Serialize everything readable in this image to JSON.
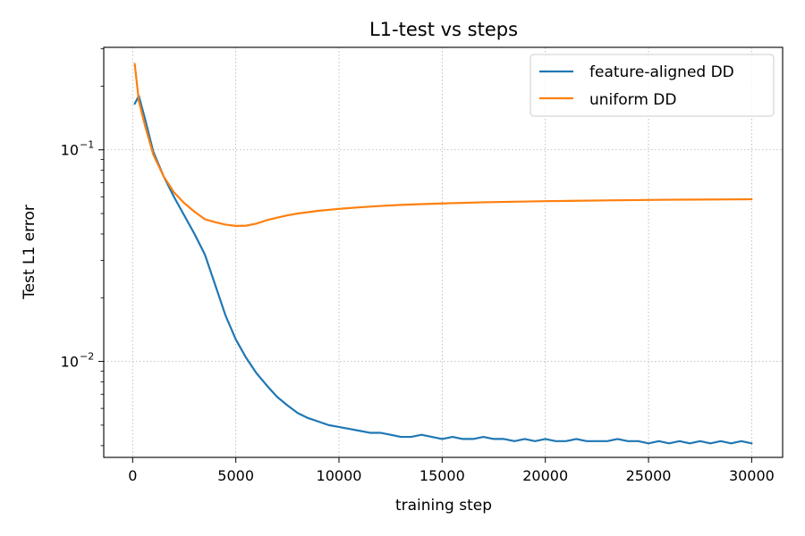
{
  "chart_data": {
    "type": "line",
    "title": "L1-test vs steps",
    "xlabel": "training step",
    "ylabel": "Test L1 error",
    "xscale": "linear",
    "yscale": "log",
    "xlim": [
      -1400,
      31500
    ],
    "ylim": [
      0.00352,
      0.305
    ],
    "xticks": [
      0,
      5000,
      10000,
      15000,
      20000,
      25000,
      30000
    ],
    "xtick_labels": [
      "0",
      "5000",
      "10000",
      "15000",
      "20000",
      "25000",
      "30000"
    ],
    "yticks": [
      0.01,
      0.1
    ],
    "ytick_labels": [
      {
        "base": "10",
        "exp": "−2"
      },
      {
        "base": "10",
        "exp": "−1"
      }
    ],
    "grid": true,
    "legend_position": "top-right",
    "series": [
      {
        "name": "feature-aligned DD",
        "color": "#1f77b4",
        "x": [
          100,
          300,
          600,
          1000,
          1500,
          2000,
          2500,
          3000,
          3500,
          4000,
          4500,
          5000,
          5500,
          6000,
          6500,
          7000,
          7500,
          8000,
          8500,
          9000,
          9500,
          10000,
          10500,
          11000,
          11500,
          12000,
          12500,
          13000,
          13500,
          14000,
          14500,
          15000,
          15500,
          16000,
          16500,
          17000,
          17500,
          18000,
          18500,
          19000,
          19500,
          20000,
          20500,
          21000,
          21500,
          22000,
          22500,
          23000,
          23500,
          24000,
          24500,
          25000,
          25500,
          26000,
          26500,
          27000,
          27500,
          28000,
          28500,
          29000,
          29500,
          30000
        ],
        "y": [
          0.165,
          0.18,
          0.14,
          0.098,
          0.075,
          0.06,
          0.049,
          0.04,
          0.032,
          0.023,
          0.0165,
          0.0127,
          0.0104,
          0.0088,
          0.0077,
          0.0068,
          0.0062,
          0.0057,
          0.0054,
          0.0052,
          0.005,
          0.0049,
          0.0048,
          0.0047,
          0.0046,
          0.0046,
          0.0045,
          0.0044,
          0.0044,
          0.0045,
          0.0044,
          0.0043,
          0.0044,
          0.0043,
          0.0043,
          0.0044,
          0.0043,
          0.0043,
          0.0042,
          0.0043,
          0.0042,
          0.0043,
          0.0042,
          0.0042,
          0.0043,
          0.0042,
          0.0042,
          0.0042,
          0.0043,
          0.0042,
          0.0042,
          0.0041,
          0.0042,
          0.0041,
          0.0042,
          0.0041,
          0.0042,
          0.0041,
          0.0042,
          0.0041,
          0.0042,
          0.0041
        ]
      },
      {
        "name": "uniform DD",
        "color": "#ff7f0e",
        "x": [
          100,
          300,
          600,
          1000,
          1500,
          2000,
          2500,
          3000,
          3500,
          4000,
          4500,
          5000,
          5500,
          6000,
          6500,
          7000,
          7500,
          8000,
          9000,
          10000,
          11000,
          12000,
          13000,
          14000,
          15000,
          17000,
          20000,
          23000,
          26000,
          30000
        ],
        "y": [
          0.255,
          0.17,
          0.13,
          0.095,
          0.075,
          0.063,
          0.056,
          0.051,
          0.047,
          0.0455,
          0.0443,
          0.0437,
          0.0438,
          0.0448,
          0.0465,
          0.0478,
          0.049,
          0.05,
          0.0515,
          0.0526,
          0.0535,
          0.0543,
          0.0549,
          0.0554,
          0.0558,
          0.0565,
          0.0572,
          0.0577,
          0.0581,
          0.0584
        ]
      }
    ]
  }
}
